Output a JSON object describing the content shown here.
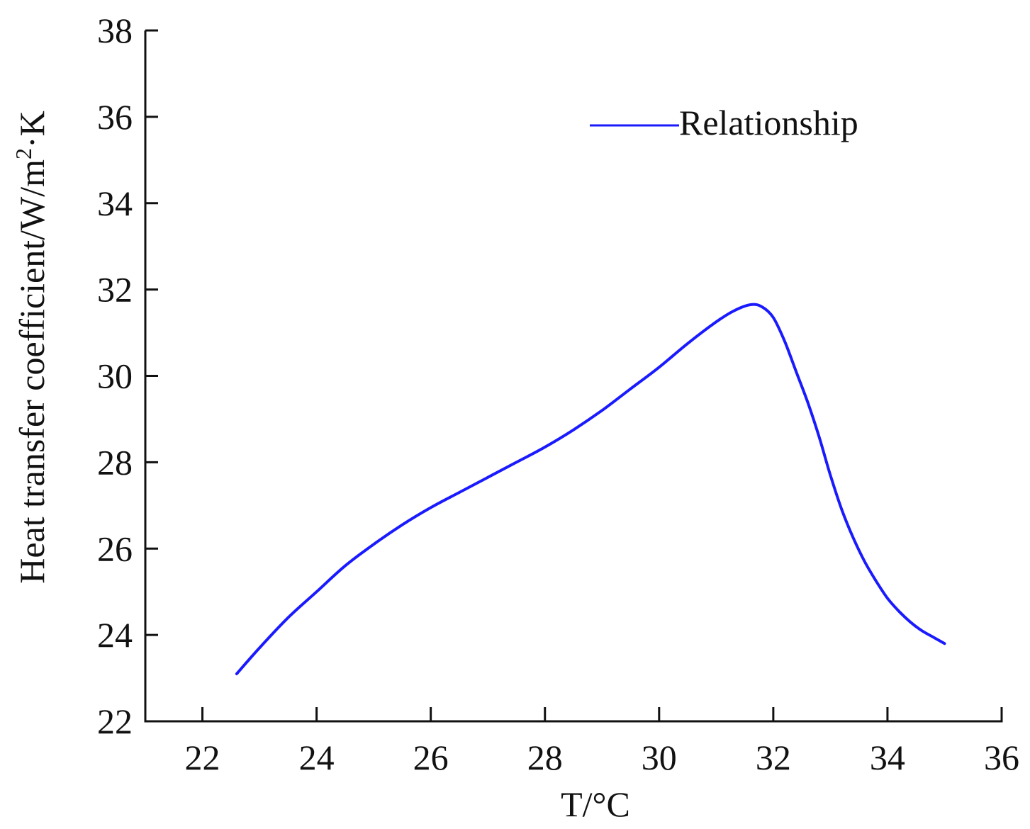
{
  "chart_data": {
    "type": "line",
    "title": "",
    "xlabel": "T/°C",
    "ylabel_main": "Heat transfer coefficient/W/m",
    "ylabel_sup": "2",
    "ylabel_tail": "·K",
    "xlim": [
      21,
      36
    ],
    "ylim": [
      22,
      38
    ],
    "xticks": [
      22,
      24,
      26,
      28,
      30,
      32,
      34,
      36
    ],
    "yticks": [
      22,
      24,
      26,
      28,
      30,
      32,
      34,
      36,
      38
    ],
    "legend_position": "top-right",
    "grid": false,
    "series": [
      {
        "name": "Relationship",
        "color": "#1a1aff",
        "x": [
          22.6,
          23.0,
          23.5,
          24.0,
          24.5,
          25.0,
          25.5,
          26.0,
          26.5,
          27.0,
          27.5,
          28.0,
          28.5,
          29.0,
          29.5,
          30.0,
          30.5,
          31.0,
          31.3,
          31.6,
          31.8,
          32.0,
          32.2,
          32.4,
          32.6,
          32.8,
          33.0,
          33.2,
          33.4,
          33.6,
          33.8,
          34.0,
          34.2,
          34.4,
          34.6,
          34.8,
          35.0
        ],
        "y": [
          23.1,
          23.7,
          24.4,
          25.0,
          25.6,
          26.1,
          26.55,
          26.95,
          27.3,
          27.65,
          28.0,
          28.35,
          28.75,
          29.2,
          29.7,
          30.2,
          30.75,
          31.25,
          31.5,
          31.65,
          31.6,
          31.35,
          30.8,
          30.1,
          29.4,
          28.6,
          27.7,
          26.9,
          26.25,
          25.7,
          25.25,
          24.85,
          24.55,
          24.3,
          24.1,
          23.95,
          23.8
        ]
      }
    ]
  }
}
